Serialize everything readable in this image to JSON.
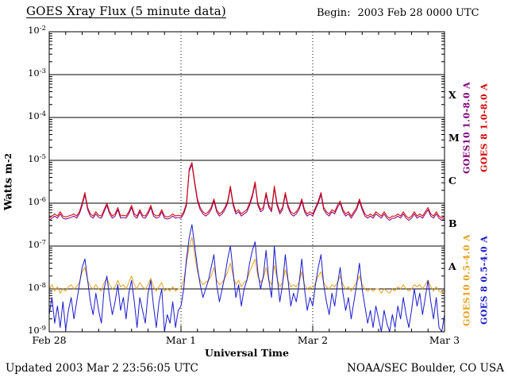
{
  "page": {
    "title": "GOES Xray Flux (5 minute data)",
    "begin_label": "Begin:",
    "begin_value": "2003 Feb 28 0000 UTC",
    "updated": "Updated 2003 Mar 2 23:56:05 UTC",
    "credit": "NOAA/SEC Boulder, CO USA"
  },
  "chart_data": {
    "type": "line",
    "title": "GOES Xray Flux (5 minute data)",
    "xlabel": "Universal Time",
    "ylabel_base": "Watts m",
    "ylabel_exp": "-2",
    "x_unit": "hours since 2003 Feb 28 0000 UTC",
    "x_range_hours": [
      0,
      72
    ],
    "sample_step_hours": 0.5,
    "y_scale": "log10",
    "y_range_exp": [
      -9,
      -2
    ],
    "y_tick_exponents": [
      -2,
      -3,
      -4,
      -5,
      -6,
      -7,
      -8,
      -9
    ],
    "x_ticks": [
      {
        "hour": 0,
        "label": "Feb 28"
      },
      {
        "hour": 24,
        "label": "Mar 1"
      },
      {
        "hour": 48,
        "label": "Mar 2"
      },
      {
        "hour": 72,
        "label": "Mar 3"
      }
    ],
    "grid": {
      "horizontal_solid_at_exponents": [
        -3,
        -4,
        -5,
        -6,
        -7,
        -8
      ],
      "vertical_dotted_at_hours": [
        24,
        48
      ],
      "x_minor_tick_step_hours": 3
    },
    "flare_classes": [
      {
        "label": "X",
        "exp": -3.5
      },
      {
        "label": "M",
        "exp": -4.5
      },
      {
        "label": "C",
        "exp": -5.5
      },
      {
        "label": "B",
        "exp": -6.5
      },
      {
        "label": "A",
        "exp": -7.5
      }
    ],
    "series": [
      {
        "name": "GOES10 1.0-8.0 A",
        "color": "#800080",
        "legend_col": 0,
        "legend_group": "top",
        "derived_from": "GOES 8 1.0-8.0 A",
        "offset_log10": -0.05
      },
      {
        "name": "GOES10 0.5-4.0 A",
        "color": "#e8a020",
        "legend_col": 0,
        "legend_group": "bottom",
        "log10_values": [
          -8.0,
          -7.9,
          -8.05,
          -7.95,
          -8.1,
          -8.0,
          -8.05,
          -7.95,
          -7.9,
          -8.0,
          -7.95,
          -7.85,
          -7.6,
          -7.5,
          -7.8,
          -7.95,
          -8.0,
          -7.9,
          -8.0,
          -8.05,
          -7.85,
          -7.75,
          -7.9,
          -8.0,
          -7.95,
          -7.8,
          -7.95,
          -7.9,
          -8.0,
          -7.85,
          -7.7,
          -7.9,
          -8.0,
          -7.85,
          -7.95,
          -8.0,
          -7.9,
          -7.75,
          -7.95,
          -8.05,
          -7.95,
          -7.85,
          -8.05,
          -8.0,
          -8.05,
          -7.95,
          -8.05,
          -8.0,
          -8.0,
          -7.8,
          -7.4,
          -7.0,
          -6.8,
          -7.2,
          -7.6,
          -7.8,
          -7.9,
          -7.85,
          -7.8,
          -7.7,
          -7.5,
          -7.8,
          -7.9,
          -7.85,
          -7.75,
          -7.6,
          -7.4,
          -7.7,
          -7.9,
          -7.8,
          -7.95,
          -7.85,
          -7.8,
          -7.6,
          -7.45,
          -7.3,
          -7.7,
          -7.85,
          -7.75,
          -7.5,
          -7.8,
          -7.9,
          -7.45,
          -7.75,
          -7.95,
          -7.85,
          -7.55,
          -7.8,
          -7.95,
          -7.9,
          -7.95,
          -7.85,
          -7.6,
          -7.9,
          -8.0,
          -7.95,
          -8.0,
          -7.85,
          -7.7,
          -7.6,
          -7.85,
          -7.95,
          -8.0,
          -7.9,
          -7.95,
          -7.85,
          -7.7,
          -7.9,
          -8.0,
          -7.95,
          -8.05,
          -7.95,
          -7.85,
          -7.7,
          -7.9,
          -8.0,
          -8.05,
          -8.0,
          -8.05,
          -8.0,
          -8.0,
          -8.1,
          -8.0,
          -8.05,
          -8.1,
          -8.0,
          -8.05,
          -7.95,
          -8.0,
          -7.9,
          -8.0,
          -8.05,
          -8.0,
          -7.9,
          -7.95,
          -7.9,
          -8.0,
          -7.9,
          -7.8,
          -7.95,
          -8.05,
          -7.95,
          -8.05,
          -8.1,
          -8.0
        ]
      },
      {
        "name": "GOES 8 0.5-4.0 A",
        "color": "#1a1acd",
        "legend_col": 1,
        "legend_group": "bottom",
        "log10_values": [
          -8.6,
          -8.2,
          -8.8,
          -8.4,
          -8.9,
          -8.3,
          -8.95,
          -8.5,
          -8.2,
          -8.7,
          -8.3,
          -7.9,
          -7.5,
          -7.3,
          -7.8,
          -8.3,
          -8.6,
          -8.1,
          -8.5,
          -8.8,
          -8.0,
          -7.7,
          -8.2,
          -8.6,
          -8.3,
          -7.9,
          -8.5,
          -8.2,
          -8.7,
          -8.1,
          -7.8,
          -8.3,
          -8.9,
          -8.2,
          -8.5,
          -8.8,
          -8.1,
          -7.8,
          -8.4,
          -8.9,
          -8.3,
          -8.0,
          -9.0,
          -8.6,
          -8.8,
          -8.3,
          -8.9,
          -8.5,
          -8.4,
          -8.0,
          -7.3,
          -6.8,
          -6.5,
          -7.0,
          -7.5,
          -7.9,
          -8.2,
          -8.0,
          -7.8,
          -7.5,
          -7.2,
          -7.9,
          -8.3,
          -8.0,
          -7.7,
          -7.3,
          -7.0,
          -7.6,
          -8.2,
          -7.9,
          -8.4,
          -8.0,
          -7.8,
          -7.4,
          -7.1,
          -6.9,
          -7.6,
          -8.0,
          -7.7,
          -7.1,
          -7.8,
          -8.2,
          -7.0,
          -7.7,
          -8.3,
          -7.9,
          -7.2,
          -7.8,
          -8.4,
          -8.1,
          -8.3,
          -7.9,
          -7.3,
          -8.0,
          -8.5,
          -8.2,
          -8.4,
          -7.9,
          -7.5,
          -7.2,
          -7.9,
          -8.3,
          -8.6,
          -8.1,
          -8.4,
          -7.9,
          -7.5,
          -8.1,
          -8.5,
          -8.2,
          -8.7,
          -8.3,
          -7.9,
          -7.4,
          -8.0,
          -8.4,
          -8.8,
          -8.5,
          -8.9,
          -8.4,
          -8.7,
          -9.0,
          -8.5,
          -8.8,
          -9.0,
          -8.6,
          -8.9,
          -8.4,
          -8.7,
          -8.2,
          -8.6,
          -8.9,
          -8.5,
          -8.0,
          -8.4,
          -8.1,
          -8.6,
          -8.2,
          -7.8,
          -8.3,
          -8.7,
          -8.2,
          -8.9,
          -9.0,
          -8.6
        ]
      },
      {
        "name": "GOES 8 1.0-8.0 A",
        "color": "#d40000",
        "legend_col": 1,
        "legend_group": "top",
        "log10_values": [
          -6.35,
          -6.3,
          -6.25,
          -6.3,
          -6.2,
          -6.3,
          -6.32,
          -6.3,
          -6.28,
          -6.25,
          -6.3,
          -6.2,
          -6.0,
          -5.75,
          -6.1,
          -6.25,
          -6.3,
          -6.2,
          -6.28,
          -6.3,
          -6.15,
          -6.0,
          -6.2,
          -6.3,
          -6.25,
          -6.1,
          -6.3,
          -6.28,
          -6.3,
          -6.2,
          -6.05,
          -6.25,
          -6.3,
          -6.15,
          -6.28,
          -6.3,
          -6.2,
          -6.05,
          -6.25,
          -6.3,
          -6.28,
          -6.15,
          -6.3,
          -6.32,
          -6.3,
          -6.25,
          -6.3,
          -6.28,
          -6.3,
          -6.2,
          -6.0,
          -5.2,
          -5.05,
          -5.5,
          -5.9,
          -6.1,
          -6.2,
          -6.25,
          -6.2,
          -6.1,
          -5.9,
          -6.15,
          -6.25,
          -6.2,
          -6.1,
          -5.95,
          -5.6,
          -6.0,
          -6.2,
          -6.15,
          -6.25,
          -6.2,
          -6.15,
          -6.0,
          -5.8,
          -5.5,
          -6.0,
          -6.15,
          -6.1,
          -5.75,
          -6.05,
          -6.15,
          -5.6,
          -6.0,
          -6.2,
          -6.1,
          -5.75,
          -6.05,
          -6.2,
          -6.25,
          -6.2,
          -6.1,
          -5.9,
          -6.15,
          -6.25,
          -6.2,
          -6.25,
          -6.1,
          -5.95,
          -5.75,
          -6.1,
          -6.2,
          -6.25,
          -6.15,
          -6.2,
          -6.05,
          -5.95,
          -6.15,
          -6.25,
          -6.2,
          -6.3,
          -6.2,
          -6.1,
          -5.9,
          -6.1,
          -6.25,
          -6.3,
          -6.25,
          -6.3,
          -6.2,
          -6.25,
          -6.3,
          -6.2,
          -6.3,
          -6.35,
          -6.3,
          -6.3,
          -6.25,
          -6.3,
          -6.2,
          -6.3,
          -6.35,
          -6.3,
          -6.2,
          -6.3,
          -6.25,
          -6.3,
          -6.2,
          -6.1,
          -6.25,
          -6.3,
          -6.2,
          -6.3,
          -6.35,
          -6.3
        ]
      }
    ]
  }
}
